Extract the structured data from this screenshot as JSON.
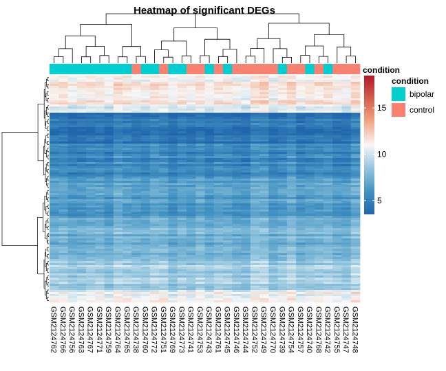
{
  "chart_data": {
    "type": "heatmap",
    "title": "Heatmap of significant DEGs",
    "columns": [
      "GSM2124762",
      "GSM2124766",
      "GSM2124756",
      "GSM2124763",
      "GSM2124767",
      "GSM2124771",
      "GSM2124759",
      "GSM2124764",
      "GSM2124765",
      "GSM2124738",
      "GSM2124760",
      "GSM2124772",
      "GSM2124751",
      "GSM2124769",
      "GSM2124773",
      "GSM2124741",
      "GSM2124753",
      "GSM2124743",
      "GSM2124761",
      "GSM2124745",
      "GSM2124746",
      "GSM2124744",
      "GSM2124752",
      "GSM2124749",
      "GSM2124770",
      "GSM2124739",
      "GSM2124754",
      "GSM2124757",
      "GSM2124740",
      "GSM2124768",
      "GSM2124742",
      "GSM2124755",
      "GSM2124747",
      "GSM2124748"
    ],
    "condition": [
      "bipolar",
      "bipolar",
      "bipolar",
      "bipolar",
      "bipolar",
      "bipolar",
      "bipolar",
      "bipolar",
      "bipolar",
      "control",
      "bipolar",
      "bipolar",
      "control",
      "bipolar",
      "bipolar",
      "control",
      "control",
      "bipolar",
      "control",
      "bipolar",
      "control",
      "control",
      "control",
      "control",
      "control",
      "bipolar",
      "control",
      "control",
      "bipolar",
      "control",
      "bipolar",
      "control",
      "control",
      "control"
    ],
    "annotation": {
      "name": "condition",
      "legend_title": "condition",
      "levels": [
        {
          "label": "bipolar",
          "color": "#00CED1"
        },
        {
          "label": "control",
          "color": "#FA8072"
        }
      ]
    },
    "colorbar": {
      "title": "condition",
      "ticks": [
        5,
        10,
        15
      ],
      "range": [
        3.5,
        18.5
      ],
      "palette": [
        "#2166AC",
        "#4393C3",
        "#92C5DE",
        "#F7F7F7",
        "#F4A582",
        "#D6604D",
        "#B2182B"
      ]
    },
    "row_profile": [
      {
        "from": 0.0,
        "to": 0.14,
        "value": 11.5
      },
      {
        "from": 0.14,
        "to": 0.16,
        "value": 10.0
      },
      {
        "from": 0.16,
        "to": 0.3,
        "value": 4.5
      },
      {
        "from": 0.3,
        "to": 0.45,
        "value": 5.5
      },
      {
        "from": 0.45,
        "to": 0.63,
        "value": 6.5
      },
      {
        "from": 0.63,
        "to": 0.82,
        "value": 7.5
      },
      {
        "from": 0.82,
        "to": 0.95,
        "value": 9.0
      },
      {
        "from": 0.95,
        "to": 1.0,
        "value": 11.0
      }
    ]
  }
}
